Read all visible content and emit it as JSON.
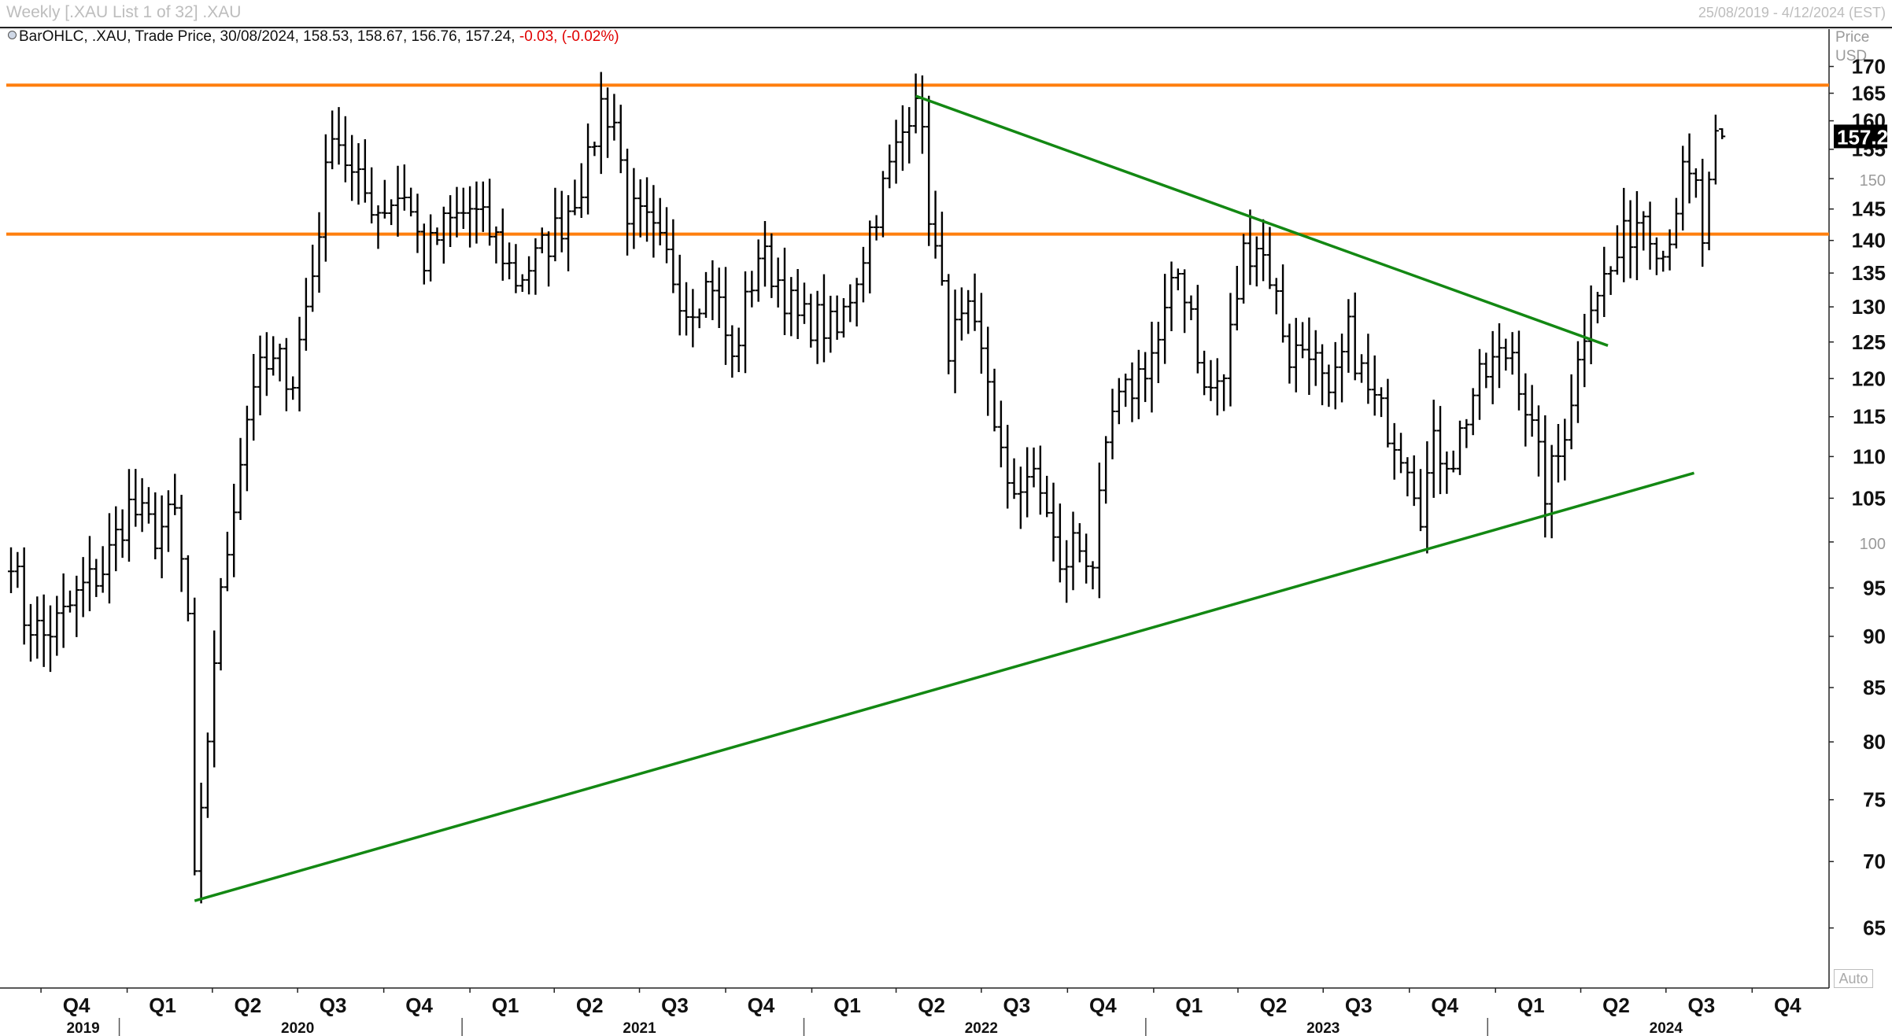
{
  "window": {
    "title": "Weekly [.XAU List 1 of 32] .XAU",
    "date_range": "25/08/2019 - 4/12/2024 (EST)"
  },
  "legend": {
    "study": "BarOHLC, .XAU, Trade Price, 30/08/2024, 158.53, 158.67, 156.76, 157.24,",
    "change": "-0.03, (-0.02%)"
  },
  "axis": {
    "price_label_1": "Price",
    "price_label_2": "USD",
    "auto_label": "Auto"
  },
  "colors": {
    "bars": "#000000",
    "horizontal_lines": "#ff7f0e",
    "trend_lines": "#138813",
    "last_price_bg": "#000000"
  },
  "chart_data": {
    "type": "ohlc",
    "frequency": "weekly",
    "y_scale": "log",
    "ylim": [
      61,
      176
    ],
    "yticks": [
      65,
      70,
      75,
      80,
      85,
      90,
      95,
      100,
      105,
      110,
      115,
      120,
      125,
      130,
      135,
      140,
      145,
      150,
      155,
      160,
      165,
      170
    ],
    "minor_yticks": [
      100,
      150
    ],
    "last_price_label": "157.24",
    "x_quarter_labels": [
      {
        "date": "2019-10-01",
        "label": "Q4"
      },
      {
        "date": "2020-01-01",
        "label": "Q1"
      },
      {
        "date": "2020-04-01",
        "label": "Q2"
      },
      {
        "date": "2020-07-01",
        "label": "Q3"
      },
      {
        "date": "2020-10-01",
        "label": "Q4"
      },
      {
        "date": "2021-01-01",
        "label": "Q1"
      },
      {
        "date": "2021-04-01",
        "label": "Q2"
      },
      {
        "date": "2021-07-01",
        "label": "Q3"
      },
      {
        "date": "2021-10-01",
        "label": "Q4"
      },
      {
        "date": "2022-01-01",
        "label": "Q1"
      },
      {
        "date": "2022-04-01",
        "label": "Q2"
      },
      {
        "date": "2022-07-01",
        "label": "Q3"
      },
      {
        "date": "2022-10-01",
        "label": "Q4"
      },
      {
        "date": "2023-01-01",
        "label": "Q1"
      },
      {
        "date": "2023-04-01",
        "label": "Q2"
      },
      {
        "date": "2023-07-01",
        "label": "Q3"
      },
      {
        "date": "2023-10-01",
        "label": "Q4"
      },
      {
        "date": "2024-01-01",
        "label": "Q1"
      },
      {
        "date": "2024-04-01",
        "label": "Q2"
      },
      {
        "date": "2024-07-01",
        "label": "Q3"
      },
      {
        "date": "2024-10-01",
        "label": "Q4"
      }
    ],
    "x_year_labels": [
      {
        "date": "2019-11-15",
        "label": "2019"
      },
      {
        "date": "2020-07-01",
        "label": "2020"
      },
      {
        "date": "2021-07-01",
        "label": "2021"
      },
      {
        "date": "2022-07-01",
        "label": "2022"
      },
      {
        "date": "2023-07-01",
        "label": "2023"
      },
      {
        "date": "2024-07-01",
        "label": "2024"
      }
    ],
    "price_anchors": [
      [
        "2019-08-30",
        99
      ],
      [
        "2019-09-13",
        92
      ],
      [
        "2019-10-04",
        90
      ],
      [
        "2019-10-25",
        92
      ],
      [
        "2019-11-15",
        95
      ],
      [
        "2019-12-06",
        97
      ],
      [
        "2020-01-03",
        104
      ],
      [
        "2020-01-31",
        101
      ],
      [
        "2020-02-21",
        103
      ],
      [
        "2020-03-06",
        92
      ],
      [
        "2020-03-13",
        68
      ],
      [
        "2020-03-20",
        73
      ],
      [
        "2020-04-03",
        88
      ],
      [
        "2020-04-24",
        105
      ],
      [
        "2020-05-15",
        120
      ],
      [
        "2020-06-12",
        122
      ],
      [
        "2020-06-26",
        120
      ],
      [
        "2020-07-17",
        135
      ],
      [
        "2020-07-31",
        150
      ],
      [
        "2020-08-07",
        160
      ],
      [
        "2020-08-28",
        150
      ],
      [
        "2020-09-25",
        145
      ],
      [
        "2020-10-23",
        148
      ],
      [
        "2020-11-13",
        137
      ],
      [
        "2020-12-04",
        142
      ],
      [
        "2021-01-01",
        145
      ],
      [
        "2021-01-29",
        140
      ],
      [
        "2021-02-19",
        134
      ],
      [
        "2021-03-12",
        137
      ],
      [
        "2021-04-09",
        143
      ],
      [
        "2021-05-07",
        152
      ],
      [
        "2021-05-21",
        163
      ],
      [
        "2021-06-04",
        160
      ],
      [
        "2021-06-18",
        145
      ],
      [
        "2021-07-09",
        142
      ],
      [
        "2021-07-30",
        137
      ],
      [
        "2021-08-20",
        130
      ],
      [
        "2021-09-17",
        134
      ],
      [
        "2021-10-08",
        122
      ],
      [
        "2021-11-05",
        138
      ],
      [
        "2021-11-26",
        134
      ],
      [
        "2021-12-17",
        128
      ],
      [
        "2022-01-07",
        128
      ],
      [
        "2022-01-28",
        126
      ],
      [
        "2022-02-18",
        135
      ],
      [
        "2022-03-11",
        145
      ],
      [
        "2022-04-08",
        158
      ],
      [
        "2022-04-22",
        167
      ],
      [
        "2022-05-06",
        145
      ],
      [
        "2022-05-13",
        138
      ],
      [
        "2022-05-27",
        125
      ],
      [
        "2022-06-17",
        128
      ],
      [
        "2022-07-08",
        120
      ],
      [
        "2022-07-29",
        105
      ],
      [
        "2022-08-19",
        108
      ],
      [
        "2022-09-09",
        104
      ],
      [
        "2022-09-23",
        96
      ],
      [
        "2022-10-07",
        100
      ],
      [
        "2022-10-28",
        98
      ],
      [
        "2022-11-18",
        115
      ],
      [
        "2022-12-09",
        119
      ],
      [
        "2023-01-06",
        125
      ],
      [
        "2023-01-27",
        135
      ],
      [
        "2023-02-10",
        130
      ],
      [
        "2023-02-24",
        118
      ],
      [
        "2023-03-17",
        120
      ],
      [
        "2023-04-07",
        138
      ],
      [
        "2023-04-21",
        140
      ],
      [
        "2023-05-05",
        135
      ],
      [
        "2023-05-26",
        123
      ],
      [
        "2023-06-16",
        125
      ],
      [
        "2023-07-07",
        116
      ],
      [
        "2023-07-28",
        126
      ],
      [
        "2023-08-18",
        118
      ],
      [
        "2023-09-08",
        114
      ],
      [
        "2023-09-29",
        110
      ],
      [
        "2023-10-13",
        104
      ],
      [
        "2023-10-27",
        111
      ],
      [
        "2023-11-17",
        110
      ],
      [
        "2023-12-08",
        118
      ],
      [
        "2023-12-29",
        122
      ],
      [
        "2024-01-19",
        124
      ],
      [
        "2024-02-09",
        113
      ],
      [
        "2024-02-23",
        106
      ],
      [
        "2024-03-08",
        110
      ],
      [
        "2024-03-29",
        122
      ],
      [
        "2024-04-12",
        132
      ],
      [
        "2024-05-03",
        135
      ],
      [
        "2024-05-17",
        140
      ],
      [
        "2024-06-07",
        145
      ],
      [
        "2024-06-28",
        138
      ],
      [
        "2024-07-19",
        150
      ],
      [
        "2024-08-02",
        148
      ],
      [
        "2024-08-09",
        140
      ],
      [
        "2024-08-23",
        155
      ],
      [
        "2024-08-30",
        157.24
      ]
    ],
    "last_bar": {
      "date": "2024-08-30",
      "open": 158.53,
      "high": 158.67,
      "low": 156.76,
      "close": 157.24
    },
    "horizontal_lines": [
      166.5,
      141
    ],
    "trend_lines": [
      {
        "from": [
          "2020-03-13",
          67
        ],
        "to": [
          "2024-07-31",
          108
        ]
      },
      {
        "from": [
          "2022-04-22",
          164.5
        ],
        "to": [
          "2024-04-30",
          124.5
        ]
      }
    ]
  }
}
